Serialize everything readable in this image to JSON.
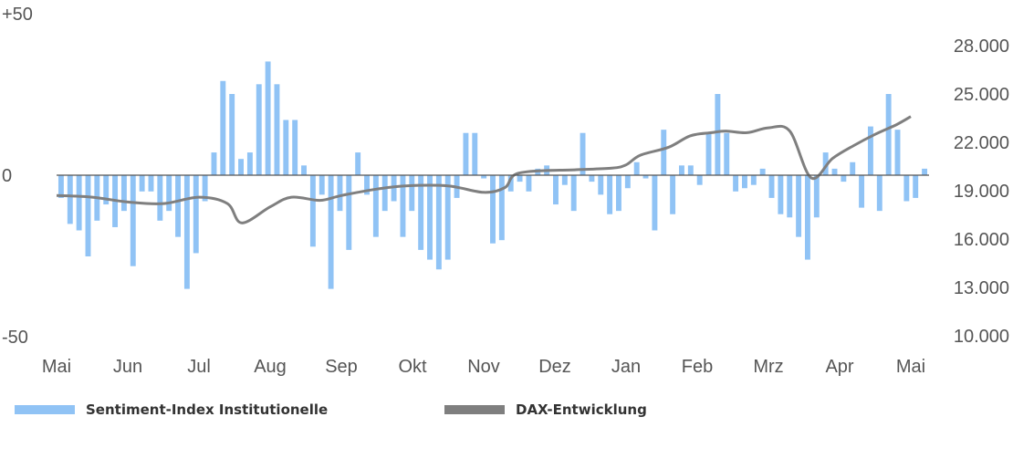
{
  "chart_data": {
    "type": "bar+line",
    "colors": {
      "bars": "#90c3f5",
      "line": "#7f7f7f",
      "zero": "#555555"
    },
    "x_ticks": [
      "Mai",
      "Jun",
      "Jul",
      "Aug",
      "Sep",
      "Okt",
      "Nov",
      "Dez",
      "Jan",
      "Feb",
      "Mrz",
      "Apr",
      "Mai"
    ],
    "y_left": {
      "ticks": [
        "+50",
        "0",
        "-50"
      ],
      "range": [
        -50,
        50
      ]
    },
    "y_right": {
      "ticks": [
        "28.000",
        "25.000",
        "22.000",
        "19.000",
        "16.000",
        "13.000",
        "10.000"
      ],
      "range": [
        10000,
        28000
      ]
    },
    "series": [
      {
        "name": "Sentiment-Index Institutionelle",
        "type": "bar",
        "axis": "left",
        "values": [
          -7,
          -15,
          -17,
          -25,
          -14,
          -9,
          -16,
          -11,
          -28,
          -5,
          -5,
          -14,
          -11,
          -19,
          -35,
          -24,
          -8,
          7,
          29,
          25,
          5,
          7,
          28,
          35,
          28,
          17,
          17,
          3,
          -22,
          -6,
          -35,
          -11,
          -23,
          7,
          -6,
          -19,
          -11,
          -8,
          -19,
          -11,
          -23,
          -26,
          -29,
          -26,
          -7,
          13,
          13,
          -1,
          -21,
          -20,
          -5,
          -2,
          -5,
          2,
          3,
          -9,
          -3,
          -11,
          13,
          -2,
          -6,
          -12,
          -11,
          -4,
          4,
          -1,
          -17,
          14,
          -12,
          3,
          3,
          -3,
          13,
          25,
          13,
          -5,
          -4,
          -3,
          2,
          -7,
          -12,
          -13,
          -19,
          -26,
          -13,
          7,
          2,
          -2,
          4,
          -10,
          15,
          -11,
          25,
          14,
          -8,
          -7,
          2
        ]
      },
      {
        "name": "DAX-Entwicklung",
        "type": "line",
        "axis": "right",
        "points": [
          [
            0,
            18.7
          ],
          [
            0.5,
            18.6
          ],
          [
            1,
            18.3
          ],
          [
            1.5,
            18.2
          ],
          [
            2,
            18.6
          ],
          [
            2.4,
            18.2
          ],
          [
            2.6,
            17.0
          ],
          [
            3,
            18.0
          ],
          [
            3.3,
            18.6
          ],
          [
            3.7,
            18.4
          ],
          [
            4,
            18.7
          ],
          [
            4.5,
            19.1
          ],
          [
            4.9,
            19.3
          ],
          [
            5.5,
            19.3
          ],
          [
            6,
            18.9
          ],
          [
            6.3,
            19.2
          ],
          [
            6.5,
            20.1
          ],
          [
            7.3,
            20.3
          ],
          [
            7.8,
            20.4
          ],
          [
            8,
            20.6
          ],
          [
            8.2,
            21.2
          ],
          [
            8.6,
            21.7
          ],
          [
            8.9,
            22.4
          ],
          [
            9.2,
            22.6
          ],
          [
            9.4,
            22.7
          ],
          [
            9.7,
            22.6
          ],
          [
            10,
            22.9
          ],
          [
            10.3,
            22.7
          ],
          [
            10.6,
            19.8
          ],
          [
            10.9,
            21.0
          ],
          [
            11.2,
            21.8
          ],
          [
            11.5,
            22.5
          ],
          [
            11.8,
            23.1
          ],
          [
            12,
            23.6
          ]
        ]
      }
    ]
  }
}
